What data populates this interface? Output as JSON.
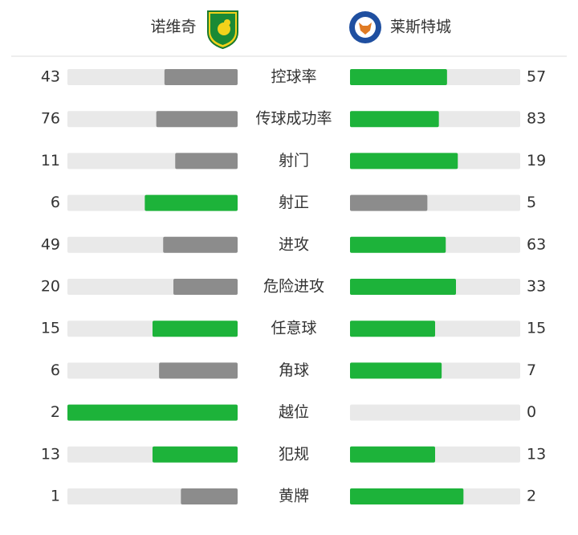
{
  "header": {
    "home": "诺维奇",
    "away": "莱斯特城"
  },
  "stats": [
    {
      "label": "控球率",
      "home": 43,
      "away": 57
    },
    {
      "label": "传球成功率",
      "home": 76,
      "away": 83
    },
    {
      "label": "射门",
      "home": 11,
      "away": 19
    },
    {
      "label": "射正",
      "home": 6,
      "away": 5
    },
    {
      "label": "进攻",
      "home": 49,
      "away": 63
    },
    {
      "label": "危险进攻",
      "home": 20,
      "away": 33
    },
    {
      "label": "任意球",
      "home": 15,
      "away": 15
    },
    {
      "label": "角球",
      "home": 6,
      "away": 7
    },
    {
      "label": "越位",
      "home": 2,
      "away": 0
    },
    {
      "label": "犯规",
      "home": 13,
      "away": 13
    },
    {
      "label": "黄牌",
      "home": 1,
      "away": 2
    }
  ]
}
